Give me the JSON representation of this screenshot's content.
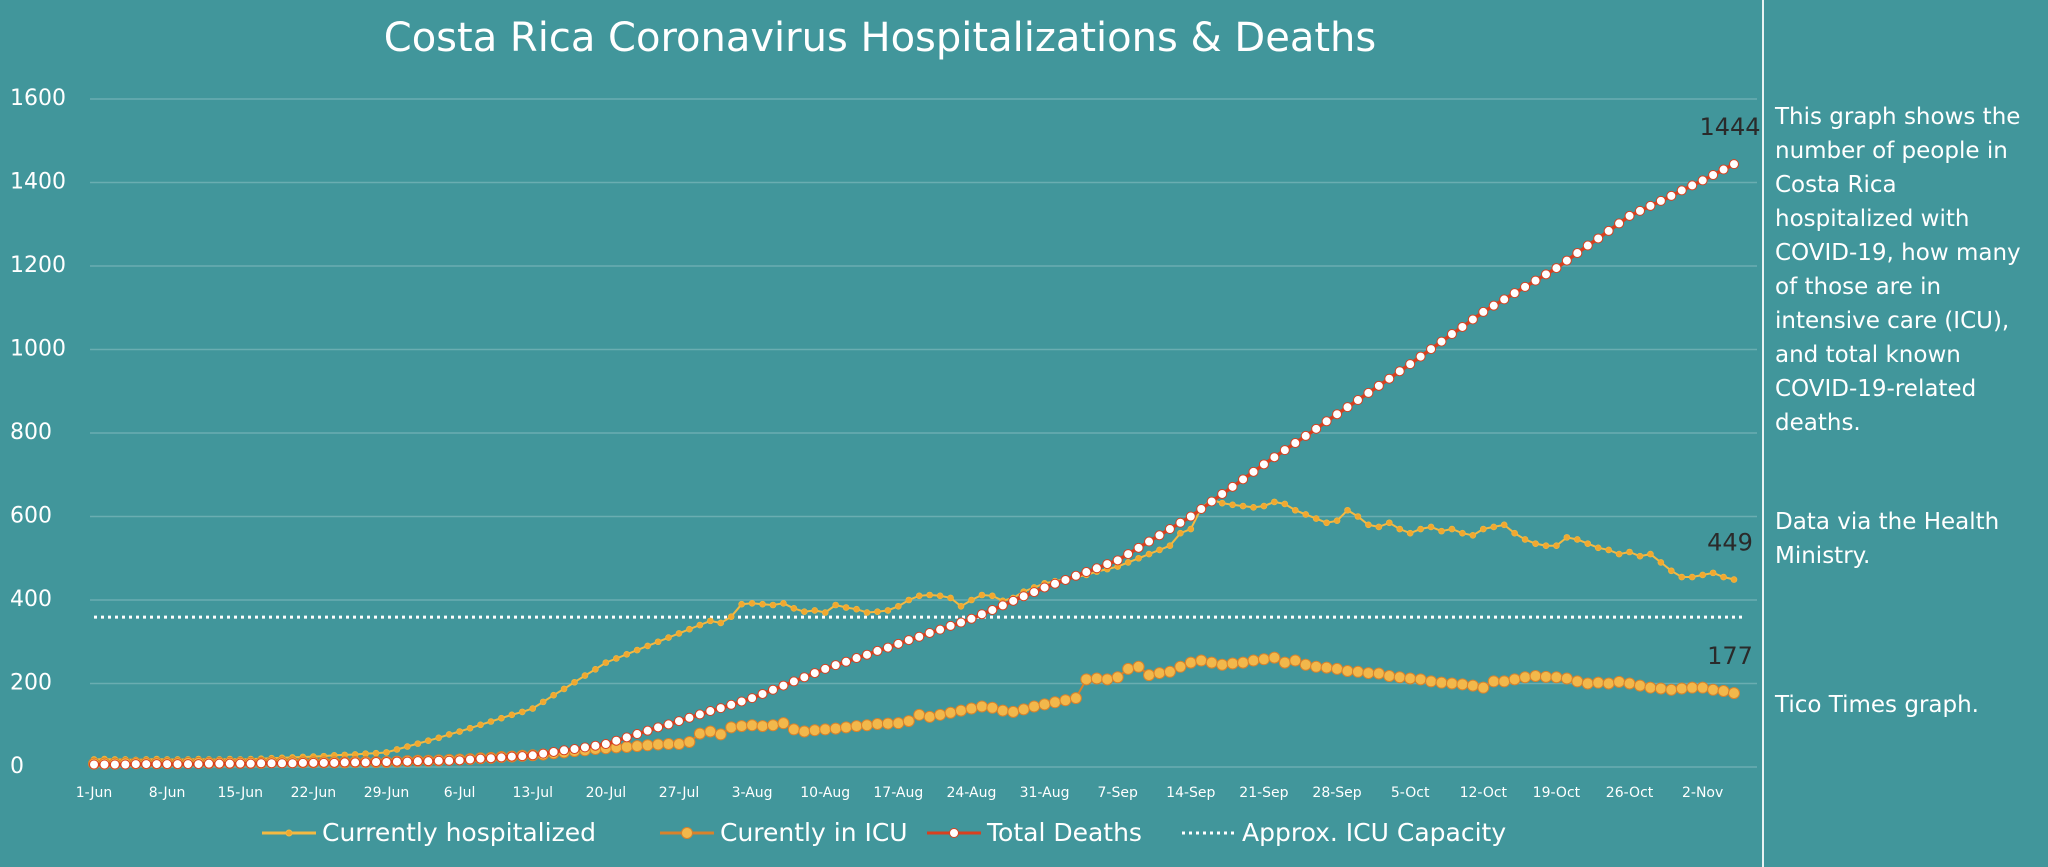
{
  "chart_data": {
    "type": "line",
    "title": "Costa Rica Coronavirus Hospitalizations & Deaths",
    "categories": [
      "1-Jun",
      null,
      null,
      null,
      null,
      null,
      null,
      "8-Jun",
      null,
      null,
      null,
      null,
      null,
      null,
      "15-Jun",
      null,
      null,
      null,
      null,
      null,
      null,
      "22-Jun",
      null,
      null,
      null,
      null,
      null,
      null,
      "29-Jun",
      null,
      null,
      null,
      null,
      null,
      null,
      "6-Jul",
      null,
      null,
      null,
      null,
      null,
      null,
      "13-Jul",
      null,
      null,
      null,
      null,
      null,
      null,
      "20-Jul",
      null,
      null,
      null,
      null,
      null,
      null,
      "27-Jul",
      null,
      null,
      null,
      null,
      null,
      null,
      "3-Aug",
      null,
      null,
      null,
      null,
      null,
      null,
      "10-Aug",
      null,
      null,
      null,
      null,
      null,
      null,
      "17-Aug",
      null,
      null,
      null,
      null,
      null,
      null,
      "24-Aug",
      null,
      null,
      null,
      null,
      null,
      null,
      "31-Aug",
      null,
      null,
      null,
      null,
      null,
      null,
      "7-Sep",
      null,
      null,
      null,
      null,
      null,
      null,
      "14-Sep",
      null,
      null,
      null,
      null,
      null,
      null,
      "21-Sep",
      null,
      null,
      null,
      null,
      null,
      null,
      "28-Sep",
      null,
      null,
      null,
      null,
      null,
      null,
      "5-Oct",
      null,
      null,
      null,
      null,
      null,
      null,
      "12-Oct",
      null,
      null,
      null,
      null,
      null,
      null,
      "19-Oct",
      null,
      null,
      null,
      null,
      null,
      null,
      "26-Oct",
      null,
      null,
      null,
      null,
      null,
      null,
      "2-Nov",
      null,
      null,
      null
    ],
    "series": [
      {
        "name": "Currently hospitalized",
        "color": "#f4b942",
        "dot": "#f0a830",
        "values": [
          18,
          19,
          18,
          18,
          17,
          18,
          19,
          18,
          18,
          18,
          19,
          18,
          18,
          19,
          18,
          19,
          20,
          21,
          22,
          23,
          24,
          25,
          26,
          28,
          29,
          30,
          32,
          33,
          35,
          42,
          49,
          56,
          63,
          70,
          78,
          85,
          93,
          101,
          109,
          117,
          125,
          132,
          140,
          156,
          172,
          187,
          203,
          219,
          234,
          250,
          260,
          270,
          280,
          290,
          300,
          310,
          320,
          330,
          340,
          350,
          345,
          360,
          390,
          392,
          390,
          388,
          392,
          380,
          372,
          375,
          370,
          388,
          382,
          378,
          370,
          372,
          375,
          385,
          400,
          410,
          412,
          410,
          405,
          385,
          400,
          412,
          410,
          398,
          405,
          420,
          430,
          440,
          445,
          450,
          455,
          460,
          468,
          474,
          480,
          490,
          500,
          510,
          520,
          530,
          560,
          570,
          620,
          640,
          632,
          628,
          625,
          622,
          625,
          635,
          630,
          615,
          605,
          595,
          585,
          590,
          615,
          600,
          580,
          575,
          585,
          570,
          560,
          570,
          575,
          565,
          570,
          560,
          555,
          570,
          575,
          580,
          560,
          545,
          535,
          530,
          530,
          550,
          545,
          535,
          525,
          520,
          510,
          515,
          505,
          510,
          490,
          470,
          455,
          455,
          460,
          465,
          455,
          449
        ]
      },
      {
        "name": "Curently in ICU",
        "color": "#d9822b",
        "dot": "#f2b84b",
        "values": [
          8,
          8,
          8,
          9,
          9,
          9,
          9,
          9,
          9,
          10,
          10,
          10,
          10,
          10,
          10,
          10,
          10,
          11,
          11,
          11,
          11,
          11,
          11,
          11,
          11,
          12,
          12,
          12,
          12,
          13,
          14,
          15,
          15,
          16,
          17,
          18,
          19,
          21,
          22,
          24,
          25,
          27,
          28,
          30,
          33,
          35,
          38,
          40,
          43,
          45,
          47,
          48,
          50,
          52,
          54,
          55,
          55,
          60,
          80,
          85,
          78,
          95,
          98,
          100,
          98,
          100,
          105,
          90,
          85,
          88,
          90,
          92,
          95,
          98,
          100,
          103,
          104,
          105,
          110,
          125,
          120,
          125,
          130,
          135,
          140,
          145,
          142,
          135,
          132,
          138,
          145,
          150,
          155,
          160,
          165,
          210,
          212,
          210,
          215,
          235,
          240,
          220,
          225,
          228,
          240,
          250,
          255,
          250,
          245,
          248,
          250,
          255,
          258,
          262,
          250,
          255,
          245,
          240,
          238,
          235,
          230,
          228,
          225,
          224,
          218,
          215,
          212,
          210,
          205,
          202,
          200,
          198,
          195,
          190,
          205,
          205,
          210,
          215,
          218,
          216,
          215,
          212,
          205,
          200,
          202,
          200,
          204,
          200,
          195,
          190,
          188,
          185,
          188,
          190,
          190,
          185,
          182,
          177
        ]
      },
      {
        "name": "Total Deaths",
        "color": "#d8401f",
        "dot": "#ffffff",
        "values": [
          6,
          6,
          6,
          6,
          7,
          7,
          7,
          7,
          7,
          7,
          7,
          8,
          8,
          8,
          8,
          8,
          9,
          9,
          9,
          9,
          10,
          10,
          10,
          10,
          11,
          11,
          11,
          12,
          12,
          13,
          13,
          14,
          14,
          15,
          15,
          16,
          18,
          20,
          21,
          23,
          25,
          26,
          28,
          32,
          36,
          40,
          43,
          47,
          51,
          55,
          63,
          71,
          79,
          87,
          95,
          102,
          110,
          118,
          126,
          134,
          141,
          149,
          157,
          165,
          175,
          185,
          195,
          205,
          215,
          225,
          235,
          244,
          252,
          261,
          269,
          278,
          286,
          295,
          304,
          312,
          321,
          329,
          338,
          346,
          355,
          366,
          376,
          387,
          398,
          409,
          419,
          430,
          439,
          448,
          458,
          467,
          476,
          486,
          495,
          510,
          525,
          540,
          555,
          570,
          585,
          600,
          618,
          636,
          654,
          671,
          689,
          707,
          725,
          742,
          759,
          776,
          793,
          810,
          828,
          845,
          862,
          879,
          896,
          913,
          930,
          948,
          965,
          983,
          1001,
          1019,
          1037,
          1054,
          1072,
          1090,
          1105,
          1120,
          1135,
          1150,
          1165,
          1180,
          1195,
          1213,
          1231,
          1249,
          1266,
          1284,
          1302,
          1320,
          1332,
          1344,
          1356,
          1368,
          1381,
          1393,
          1405,
          1418,
          1431,
          1444
        ]
      }
    ],
    "reference_line": {
      "name": "Approx. ICU Capacity",
      "color": "#ffffff",
      "value": 359
    },
    "ylim": [
      0,
      1600
    ],
    "yticks": [
      0,
      200,
      400,
      600,
      800,
      1000,
      1200,
      1400,
      1600
    ],
    "grid": true
  },
  "side_notes": [
    "This graph shows the number of people in Costa Rica hospitalized with COVID-19, how many of those are in intensive care (ICU), and total known COVID-19-related deaths.",
    "Data via the Health Ministry.",
    "Tico Times graph."
  ]
}
